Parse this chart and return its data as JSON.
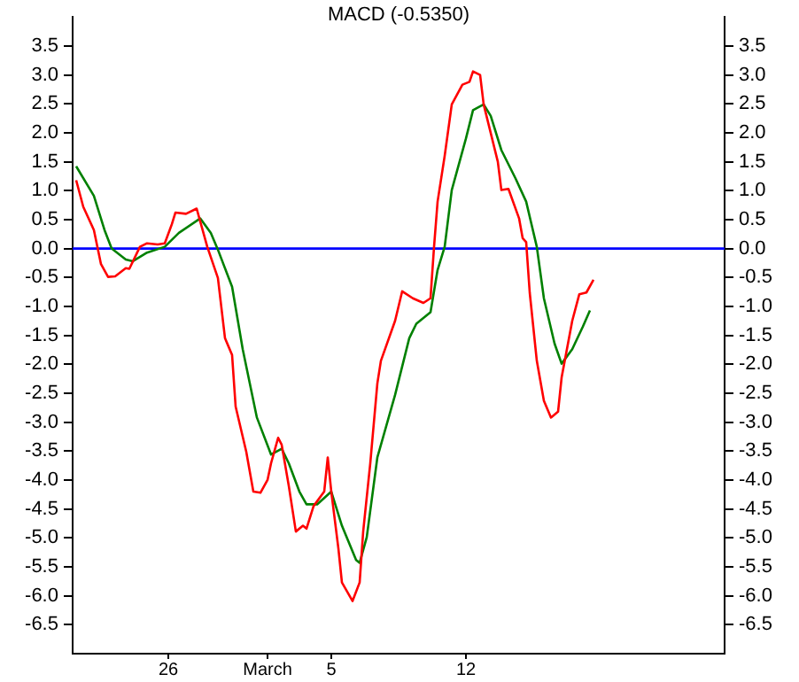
{
  "chart_data": {
    "type": "line",
    "title": "MACD (-0.5350)",
    "categories": [
      null,
      null,
      null,
      null,
      null,
      null,
      null,
      null,
      null,
      null,
      null,
      null,
      null,
      null,
      null,
      null,
      null,
      null,
      null,
      null,
      null,
      null,
      null,
      null,
      null,
      null,
      null,
      "26",
      null,
      null,
      null,
      null,
      null,
      null,
      null,
      null,
      null,
      null,
      null,
      null,
      null,
      null,
      null,
      null,
      null,
      null,
      null,
      null,
      null,
      null,
      null,
      null,
      null,
      null,
      null,
      "March",
      null,
      null,
      null,
      null,
      null,
      null,
      null,
      null,
      null,
      null,
      null,
      null,
      null,
      null,
      null,
      null,
      null,
      "5",
      null,
      null,
      null,
      null,
      null,
      null,
      null,
      null,
      null,
      null,
      null,
      null,
      null,
      null,
      null,
      null,
      null,
      null,
      null,
      null,
      null,
      null,
      null,
      null,
      null,
      null,
      null,
      null,
      null,
      null,
      null,
      null,
      null,
      null,
      null,
      null,
      null,
      "12",
      null,
      null,
      null,
      null,
      null,
      null,
      null,
      null,
      null,
      null,
      null,
      null,
      null,
      null,
      null,
      null,
      null,
      null,
      null,
      null,
      null,
      null,
      null,
      null,
      null,
      null,
      null,
      null,
      null,
      null,
      null,
      null,
      null,
      null,
      null,
      null,
      null,
      null,
      null,
      null,
      null,
      null,
      null,
      null,
      null,
      null,
      null,
      null,
      null,
      null,
      null,
      null,
      null,
      null,
      null,
      null,
      null,
      null,
      null,
      null,
      null,
      null,
      null,
      null,
      null,
      null,
      null,
      null,
      null,
      null,
      null,
      null,
      null
    ],
    "ylim": [
      -7,
      4
    ],
    "yticks": [
      {
        "value": -6.5,
        "label": "-6.5"
      },
      {
        "value": -6,
        "label": "-6.0"
      },
      {
        "value": -5.5,
        "label": "-5.5"
      },
      {
        "value": -5,
        "label": "-5.0"
      },
      {
        "value": -4.5,
        "label": "-4.5"
      },
      {
        "value": -4,
        "label": "-4.0"
      },
      {
        "value": -3.5,
        "label": "-3.5"
      },
      {
        "value": -3,
        "label": "-3.0"
      },
      {
        "value": -2.5,
        "label": "-2.5"
      },
      {
        "value": -2,
        "label": "-2.0"
      },
      {
        "value": -1.5,
        "label": "-1.5"
      },
      {
        "value": -1,
        "label": "-1.0"
      },
      {
        "value": -0.5,
        "label": "-0.5"
      },
      {
        "value": 0,
        "label": "0.0"
      },
      {
        "value": 0.5,
        "label": "0.5"
      },
      {
        "value": 1,
        "label": "1.0"
      },
      {
        "value": 1.5,
        "label": "1.5"
      },
      {
        "value": 2,
        "label": "2.0"
      },
      {
        "value": 2.5,
        "label": "2.5"
      },
      {
        "value": 3,
        "label": "3.0"
      },
      {
        "value": 3.5,
        "label": "3.5"
      }
    ],
    "y2lim": [
      -7,
      4
    ],
    "y2ticks": [
      {
        "value": -6.5,
        "label": "-6.5"
      },
      {
        "value": -6,
        "label": "-6.0"
      },
      {
        "value": -5.5,
        "label": "-5.5"
      },
      {
        "value": -5,
        "label": "-5.0"
      },
      {
        "value": -4.5,
        "label": "-4.5"
      },
      {
        "value": -4,
        "label": "-4.0"
      },
      {
        "value": -3.5,
        "label": "-3.5"
      },
      {
        "value": -3,
        "label": "-3.0"
      },
      {
        "value": -2.5,
        "label": "-2.5"
      },
      {
        "value": -2,
        "label": "-2.0"
      },
      {
        "value": -1.5,
        "label": "-1.5"
      },
      {
        "value": -1,
        "label": "-1.0"
      },
      {
        "value": -0.5,
        "label": "-0.5"
      },
      {
        "value": 0,
        "label": "0.0"
      },
      {
        "value": 0.5,
        "label": "0.5"
      },
      {
        "value": 1,
        "label": "1.0"
      },
      {
        "value": 1.5,
        "label": "1.5"
      },
      {
        "value": 2,
        "label": "2.0"
      },
      {
        "value": 2.5,
        "label": "2.5"
      },
      {
        "value": 3,
        "label": "3.0"
      },
      {
        "value": 3.5,
        "label": "3.5"
      }
    ],
    "grid": false,
    "legend": false,
    "marker": "none",
    "line_style": "solid",
    "ref_lines": [
      {
        "axis": "y",
        "value": 0,
        "color": "#0000ff"
      }
    ],
    "series": [
      {
        "color": "#ff0000",
        "values": [
          null,
          1.18,
          null,
          0.72,
          null,
          null,
          0.32,
          null,
          -0.27,
          null,
          -0.49,
          null,
          -0.48,
          null,
          null,
          -0.34,
          -0.35,
          null,
          null,
          0.03,
          null,
          0.09,
          null,
          null,
          0.07,
          null,
          0.09,
          null,
          0.42,
          0.62,
          null,
          null,
          0.6,
          null,
          null,
          0.69,
          0.47,
          null,
          0.03,
          null,
          null,
          -0.51,
          null,
          -1.55,
          null,
          -1.84,
          -2.73,
          null,
          null,
          -3.51,
          null,
          -4.2,
          null,
          -4.22,
          null,
          -4.0,
          -3.71,
          null,
          -3.27,
          -3.39,
          null,
          -4.1,
          null,
          -4.89,
          null,
          -4.79,
          -4.84,
          null,
          -4.45,
          null,
          null,
          -4.2,
          -3.61,
          -4.2,
          null,
          -5.18,
          -5.77,
          null,
          null,
          -6.09,
          null,
          -5.77,
          -4.89,
          null,
          -3.71,
          null,
          -2.33,
          -1.94,
          null,
          null,
          null,
          -1.25,
          null,
          -0.74,
          null,
          null,
          -0.86,
          null,
          null,
          -0.94,
          null,
          -0.86,
          0.03,
          0.81,
          null,
          1.6,
          null,
          2.49,
          null,
          null,
          2.83,
          null,
          2.88,
          3.06,
          null,
          3.0,
          2.49,
          null,
          null,
          null,
          1.5,
          1.01,
          null,
          1.03,
          null,
          null,
          0.52,
          0.18,
          0.11,
          -0.76,
          null,
          -1.94,
          null,
          -2.63,
          null,
          -2.92,
          null,
          -2.82,
          -2.23,
          null,
          null,
          -1.25,
          null,
          -0.79,
          null,
          -0.76,
          null,
          -0.54,
          null,
          null,
          null,
          null,
          null,
          null,
          null,
          null,
          null,
          null,
          null,
          null,
          null,
          null,
          null,
          null,
          null,
          null,
          null,
          null,
          null,
          null,
          null,
          null,
          null,
          null,
          null,
          null,
          null,
          null,
          null,
          null,
          null,
          null,
          null,
          null,
          null
        ]
      },
      {
        "color": "#008000",
        "values": [
          null,
          1.42,
          null,
          null,
          null,
          null,
          0.91,
          null,
          null,
          0.32,
          null,
          0.0,
          null,
          null,
          null,
          -0.19,
          null,
          -0.22,
          null,
          null,
          null,
          -0.07,
          null,
          null,
          null,
          null,
          0.03,
          null,
          null,
          null,
          0.27,
          null,
          null,
          null,
          null,
          null,
          0.52,
          null,
          null,
          0.27,
          null,
          -0.02,
          null,
          null,
          null,
          -0.66,
          null,
          null,
          -1.74,
          null,
          null,
          null,
          -2.92,
          null,
          null,
          null,
          -3.56,
          null,
          null,
          -3.46,
          null,
          -3.71,
          null,
          null,
          -4.2,
          null,
          -4.42,
          null,
          null,
          -4.42,
          null,
          null,
          null,
          -4.2,
          null,
          null,
          -4.79,
          null,
          null,
          null,
          -5.38,
          -5.43,
          null,
          -4.99,
          null,
          null,
          -3.61,
          null,
          null,
          null,
          null,
          -2.53,
          null,
          null,
          null,
          -1.55,
          null,
          -1.3,
          null,
          null,
          null,
          -1.1,
          null,
          -0.37,
          null,
          0.03,
          null,
          1.01,
          null,
          null,
          null,
          1.9,
          null,
          2.39,
          null,
          null,
          2.49,
          null,
          2.29,
          null,
          null,
          1.7,
          null,
          null,
          null,
          1.21,
          null,
          null,
          0.81,
          null,
          null,
          0.03,
          null,
          -0.86,
          null,
          null,
          -1.64,
          null,
          -1.99,
          null,
          null,
          -1.74,
          null,
          null,
          -1.35,
          null,
          -1.07,
          null,
          null,
          null,
          null,
          null,
          null,
          null,
          null,
          null,
          null,
          null,
          null,
          null,
          null,
          null,
          null,
          null,
          null,
          null,
          null,
          null,
          null,
          null,
          null,
          null,
          null,
          null,
          null,
          null,
          null,
          null,
          null,
          null,
          null,
          null,
          null,
          null,
          null
        ]
      }
    ]
  }
}
